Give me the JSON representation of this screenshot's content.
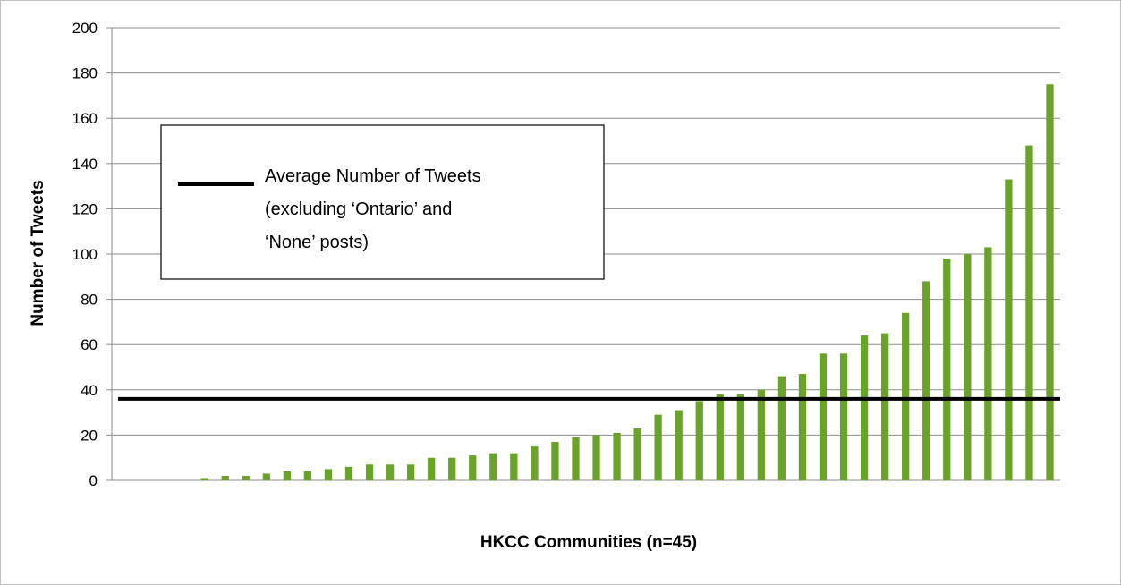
{
  "chart_data": {
    "type": "bar",
    "xlabel": "HKCC Communities (n=45)",
    "ylabel": "Number of Tweets",
    "ylim": [
      0,
      200
    ],
    "yticks": [
      0,
      20,
      40,
      60,
      80,
      100,
      120,
      140,
      160,
      180,
      200
    ],
    "grid": true,
    "bar_color": "#6aa329",
    "average_line": {
      "value": 36,
      "label_lines": [
        "Average Number of Tweets",
        "(excluding ‘Ontario’ and",
        "‘None’ posts)"
      ],
      "color": "#000000"
    },
    "legend_position": "upper-left",
    "values": [
      0,
      0,
      0,
      0,
      1,
      2,
      2,
      3,
      4,
      4,
      5,
      6,
      7,
      7,
      7,
      10,
      10,
      11,
      12,
      12,
      15,
      17,
      19,
      20,
      21,
      23,
      29,
      31,
      35,
      38,
      38,
      40,
      46,
      47,
      56,
      56,
      64,
      65,
      74,
      88,
      98,
      100,
      103,
      133,
      148,
      175
    ]
  }
}
